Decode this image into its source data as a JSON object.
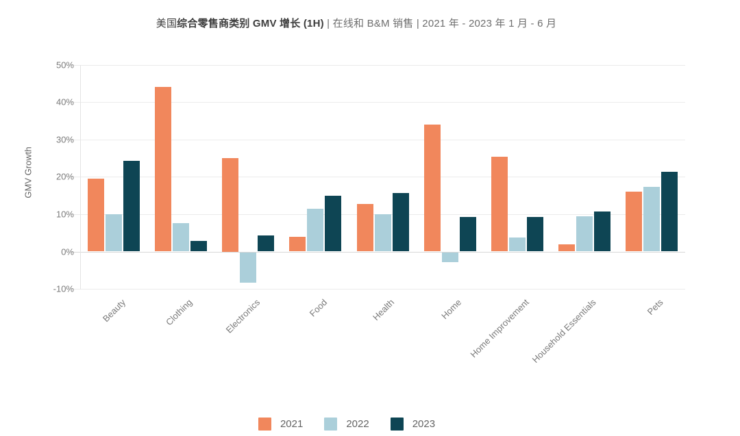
{
  "title": {
    "prefix": "美国",
    "bold": "综合零售商类别 GMV 增长 (1H)",
    "suffix": " | 在线和 B&M 销售 | 2021 年 - 2023 年 1 月 - 6 月"
  },
  "colors": {
    "series_2021": "#F1875C",
    "series_2022": "#ABCFDA",
    "series_2023": "#0E4554",
    "gridline": "#ebebeb",
    "axis_text": "#7a7a7a"
  },
  "chart_data": {
    "type": "bar",
    "title": "美国综合零售商类别 GMV 增长 (1H) | 在线和 B&M 销售 | 2021 年 - 2023 年 1 月 - 6 月",
    "xlabel": "",
    "ylabel": "GMV Growth",
    "ylim": [
      -10,
      50
    ],
    "ytick_step": 10,
    "yticks": [
      "50%",
      "40%",
      "30%",
      "20%",
      "10%",
      "0%",
      "-10%"
    ],
    "grid": true,
    "legend_position": "bottom",
    "categories": [
      "Beauty",
      "Clothing",
      "Electronics",
      "Food",
      "Health",
      "Home",
      "Home Improvement",
      "Household Essentials",
      "Pets"
    ],
    "series": [
      {
        "name": "2021",
        "color": "#F1875C",
        "values": [
          19.5,
          44,
          25,
          4,
          12.8,
          34,
          25.4,
          2,
          16
        ]
      },
      {
        "name": "2022",
        "color": "#ABCFDA",
        "values": [
          10,
          7.6,
          -8.2,
          11.5,
          10,
          -2.7,
          3.8,
          9.5,
          17.3
        ]
      },
      {
        "name": "2023",
        "color": "#0E4554",
        "values": [
          24.3,
          2.9,
          4.3,
          15,
          15.6,
          9.2,
          9.3,
          10.8,
          21.3
        ]
      }
    ]
  }
}
